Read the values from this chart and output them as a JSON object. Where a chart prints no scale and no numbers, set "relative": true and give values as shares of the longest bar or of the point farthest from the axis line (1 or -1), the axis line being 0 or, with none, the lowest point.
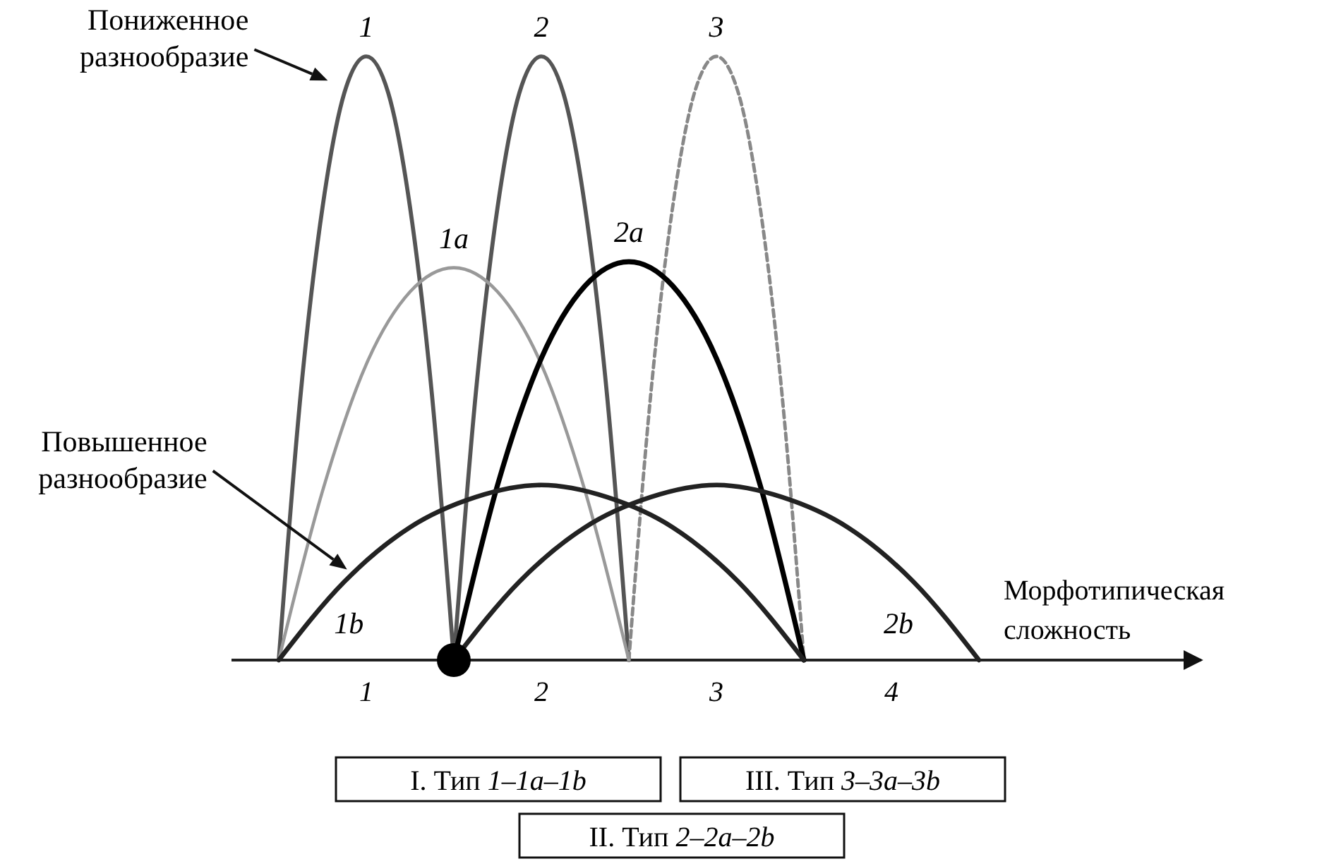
{
  "chart_data": {
    "type": "line",
    "relative": true,
    "xlabel": "Морфотипическая сложность",
    "xlim": [
      -0.27,
      5.27
    ],
    "xticks": [
      {
        "value": 0.5,
        "label": "1"
      },
      {
        "value": 1.5,
        "label": "2"
      },
      {
        "value": 2.5,
        "label": "3"
      },
      {
        "value": 3.5,
        "label": "4"
      }
    ],
    "series": [
      {
        "color": "#555555",
        "x": [
          0,
          0.125,
          0.25,
          0.375,
          0.5,
          0.625,
          0.75,
          0.875,
          1
        ],
        "values": [
          0,
          0.44,
          0.75,
          0.94,
          1,
          0.94,
          0.75,
          0.44,
          0
        ]
      },
      {
        "color": "#555555",
        "x": [
          1,
          1.125,
          1.25,
          1.375,
          1.5,
          1.625,
          1.75,
          1.875,
          2
        ],
        "values": [
          0,
          0.44,
          0.75,
          0.94,
          1,
          0.94,
          0.75,
          0.44,
          0
        ]
      },
      {
        "color": "#888888",
        "line_style": "dashed",
        "x": [
          2,
          2.125,
          2.25,
          2.375,
          2.5,
          2.625,
          2.75,
          2.875,
          3
        ],
        "values": [
          0,
          0.44,
          0.75,
          0.94,
          1,
          0.94,
          0.75,
          0.44,
          0
        ]
      },
      {
        "color": "#999999",
        "x": [
          0,
          0.25,
          0.5,
          0.75,
          1,
          1.25,
          1.5,
          1.75,
          2
        ],
        "values": [
          0,
          0.28,
          0.49,
          0.61,
          0.65,
          0.61,
          0.49,
          0.28,
          0
        ]
      },
      {
        "color": "#000000",
        "x": [
          1,
          1.25,
          1.5,
          1.75,
          2,
          2.25,
          2.5,
          2.75,
          3
        ],
        "values": [
          0,
          0.29,
          0.5,
          0.62,
          0.66,
          0.62,
          0.5,
          0.29,
          0
        ]
      },
      {
        "color": "#222222",
        "x": [
          0,
          0.375,
          0.75,
          1.125,
          1.5,
          1.875,
          2.25,
          2.625,
          3
        ],
        "values": [
          0,
          0.13,
          0.22,
          0.27,
          0.29,
          0.27,
          0.22,
          0.13,
          0
        ]
      },
      {
        "color": "#222222",
        "x": [
          1,
          1.375,
          1.75,
          2.125,
          2.5,
          2.875,
          3.25,
          3.625,
          4
        ],
        "values": [
          0,
          0.13,
          0.22,
          0.27,
          0.29,
          0.27,
          0.22,
          0.13,
          0
        ]
      },
      {
        "type": "scatter",
        "marker": "circle",
        "color": "#000000",
        "x": [
          1
        ],
        "values": [
          0
        ]
      }
    ],
    "annotations": [
      {
        "text": "1",
        "x": 0.5,
        "y": 1
      },
      {
        "text": "2",
        "x": 1.5,
        "y": 1
      },
      {
        "text": "3",
        "x": 2.5,
        "y": 1
      },
      {
        "text": "1a",
        "x": 1,
        "y": 0.65
      },
      {
        "text": "2a",
        "x": 2,
        "y": 0.66
      },
      "1b",
      "2b",
      "Пониженное разнообразие",
      "Повышенное разнообразие",
      "I. Тип 1–1a–1b",
      "III. Тип 3–3a–3b",
      "II. Тип 2–2a–2b"
    ]
  }
}
